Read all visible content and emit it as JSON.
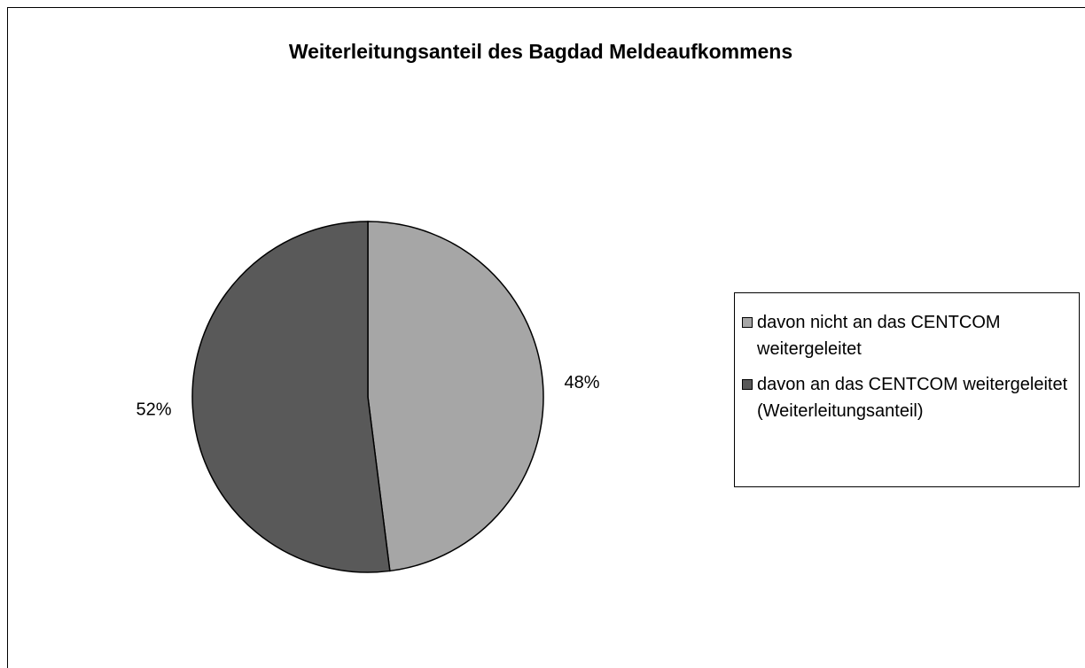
{
  "chart_data": {
    "type": "pie",
    "title": "Weiterleitungsanteil des Bagdad Meldeaufkommens",
    "categories": [
      "davon nicht an das CENTCOM weitergeleitet",
      "davon an das CENTCOM weitergeleitet (Weiterleitungsanteil)"
    ],
    "values": [
      48,
      52
    ],
    "value_labels": [
      "48%",
      "52%"
    ],
    "colors": [
      "#a6a6a6",
      "#595959"
    ],
    "legend": "right"
  }
}
